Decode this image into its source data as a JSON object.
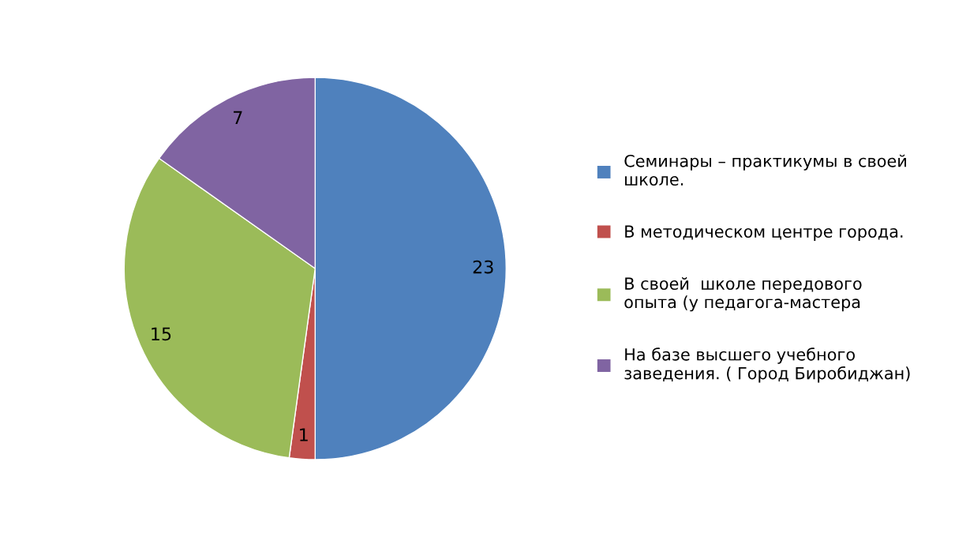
{
  "chart_data": {
    "type": "pie",
    "categories": [
      "Семинары – практикумы в своей школе.",
      "В методическом центре города.",
      "В своей  школе передового опыта (у педагога-мастера",
      "На базе высшего учебного заведения. ( Город Биробиджан)"
    ],
    "values": [
      23,
      1,
      15,
      7
    ],
    "colors": [
      "#4f81bd",
      "#c0504d",
      "#9bbb59",
      "#8064a2"
    ],
    "data_labels": true,
    "legend": "right"
  }
}
